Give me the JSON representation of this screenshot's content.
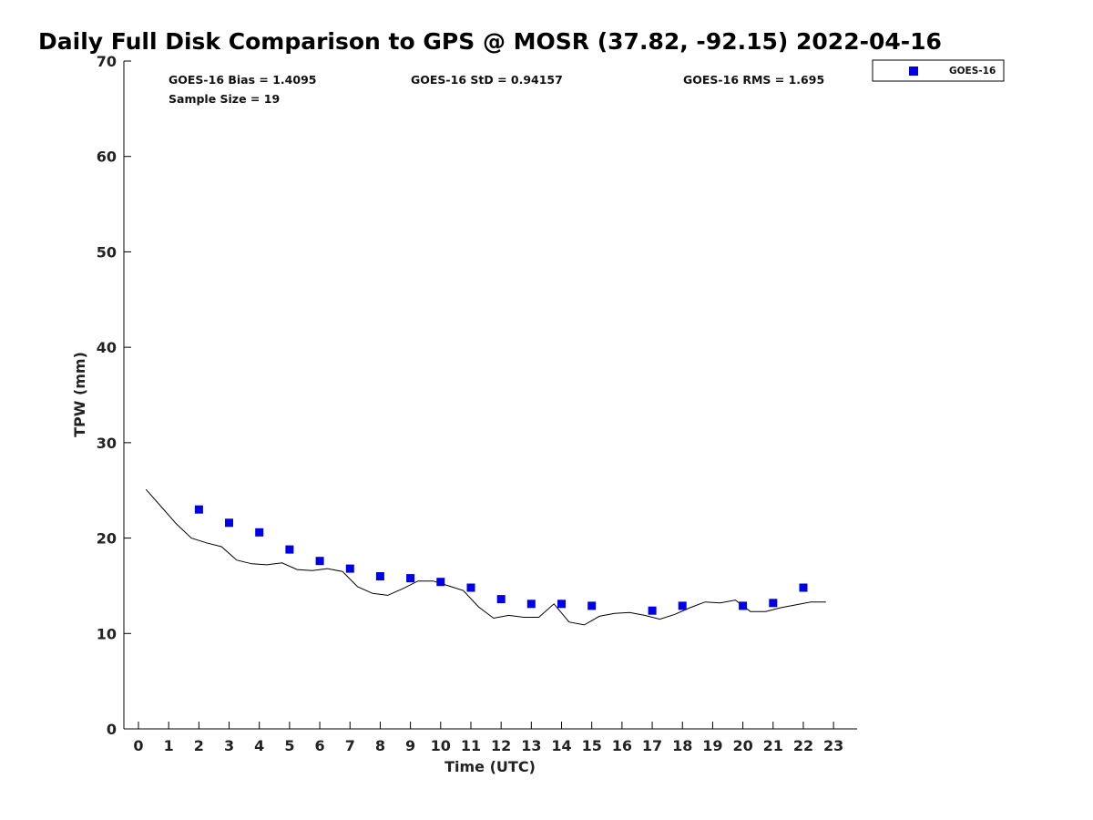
{
  "chart_data": {
    "type": "scatter",
    "title": "Daily Full Disk Comparison to GPS @ MOSR (37.82, -92.15) 2022-04-16",
    "xlabel": "Time (UTC)",
    "ylabel": "TPW (mm)",
    "xlim": [
      -0.5,
      23.8
    ],
    "ylim": [
      0,
      70
    ],
    "x_ticks": [
      0,
      1,
      2,
      3,
      4,
      5,
      6,
      7,
      8,
      9,
      10,
      11,
      12,
      13,
      14,
      15,
      16,
      17,
      18,
      19,
      20,
      21,
      22,
      23
    ],
    "y_ticks": [
      0,
      10,
      20,
      30,
      40,
      50,
      60,
      70
    ],
    "grid": false,
    "legend_position": "top-right (outside)",
    "stats": {
      "bias": "GOES-16 Bias = 1.4095",
      "std": "GOES-16 StD = 0.94157",
      "rms": "GOES-16 RMS = 1.695",
      "sample_size": "Sample Size = 19"
    },
    "series": [
      {
        "name": "GOES-16",
        "kind": "scatter",
        "marker": "square",
        "color": "#0000e6",
        "points": [
          [
            2,
            23.0
          ],
          [
            3,
            21.6
          ],
          [
            4,
            20.6
          ],
          [
            5,
            18.8
          ],
          [
            6,
            17.6
          ],
          [
            7,
            16.8
          ],
          [
            8,
            16.0
          ],
          [
            9,
            15.8
          ],
          [
            10,
            15.4
          ],
          [
            11,
            14.8
          ],
          [
            12,
            13.6
          ],
          [
            13,
            13.1
          ],
          [
            14,
            13.1
          ],
          [
            15,
            12.9
          ],
          [
            17,
            12.4
          ],
          [
            18,
            12.9
          ],
          [
            20,
            12.9
          ],
          [
            21,
            13.2
          ],
          [
            22,
            14.8
          ]
        ]
      },
      {
        "kind": "line",
        "color": "#000000",
        "points": [
          [
            0.25,
            25.1
          ],
          [
            0.75,
            23.3
          ],
          [
            1.25,
            21.5
          ],
          [
            1.75,
            20.0
          ],
          [
            2.25,
            19.5
          ],
          [
            2.75,
            19.1
          ],
          [
            3.25,
            17.7
          ],
          [
            3.75,
            17.3
          ],
          [
            4.25,
            17.2
          ],
          [
            4.75,
            17.4
          ],
          [
            5.25,
            16.7
          ],
          [
            5.75,
            16.6
          ],
          [
            6.25,
            16.8
          ],
          [
            6.75,
            16.5
          ],
          [
            7.25,
            14.9
          ],
          [
            7.75,
            14.2
          ],
          [
            8.25,
            14.0
          ],
          [
            8.75,
            14.7
          ],
          [
            9.25,
            15.5
          ],
          [
            9.75,
            15.5
          ],
          [
            10.25,
            15.0
          ],
          [
            10.75,
            14.5
          ],
          [
            11.25,
            12.8
          ],
          [
            11.75,
            11.6
          ],
          [
            12.25,
            11.9
          ],
          [
            12.75,
            11.7
          ],
          [
            13.25,
            11.7
          ],
          [
            13.75,
            13.1
          ],
          [
            14.25,
            11.2
          ],
          [
            14.75,
            10.9
          ],
          [
            15.25,
            11.8
          ],
          [
            15.75,
            12.1
          ],
          [
            16.25,
            12.2
          ],
          [
            16.75,
            11.9
          ],
          [
            17.25,
            11.5
          ],
          [
            17.75,
            12.0
          ],
          [
            18.25,
            12.7
          ],
          [
            18.75,
            13.3
          ],
          [
            19.25,
            13.2
          ],
          [
            19.75,
            13.5
          ],
          [
            20.25,
            12.3
          ],
          [
            20.75,
            12.3
          ],
          [
            21.25,
            12.7
          ],
          [
            21.75,
            13.0
          ],
          [
            22.25,
            13.3
          ],
          [
            22.75,
            13.3
          ]
        ]
      }
    ]
  }
}
